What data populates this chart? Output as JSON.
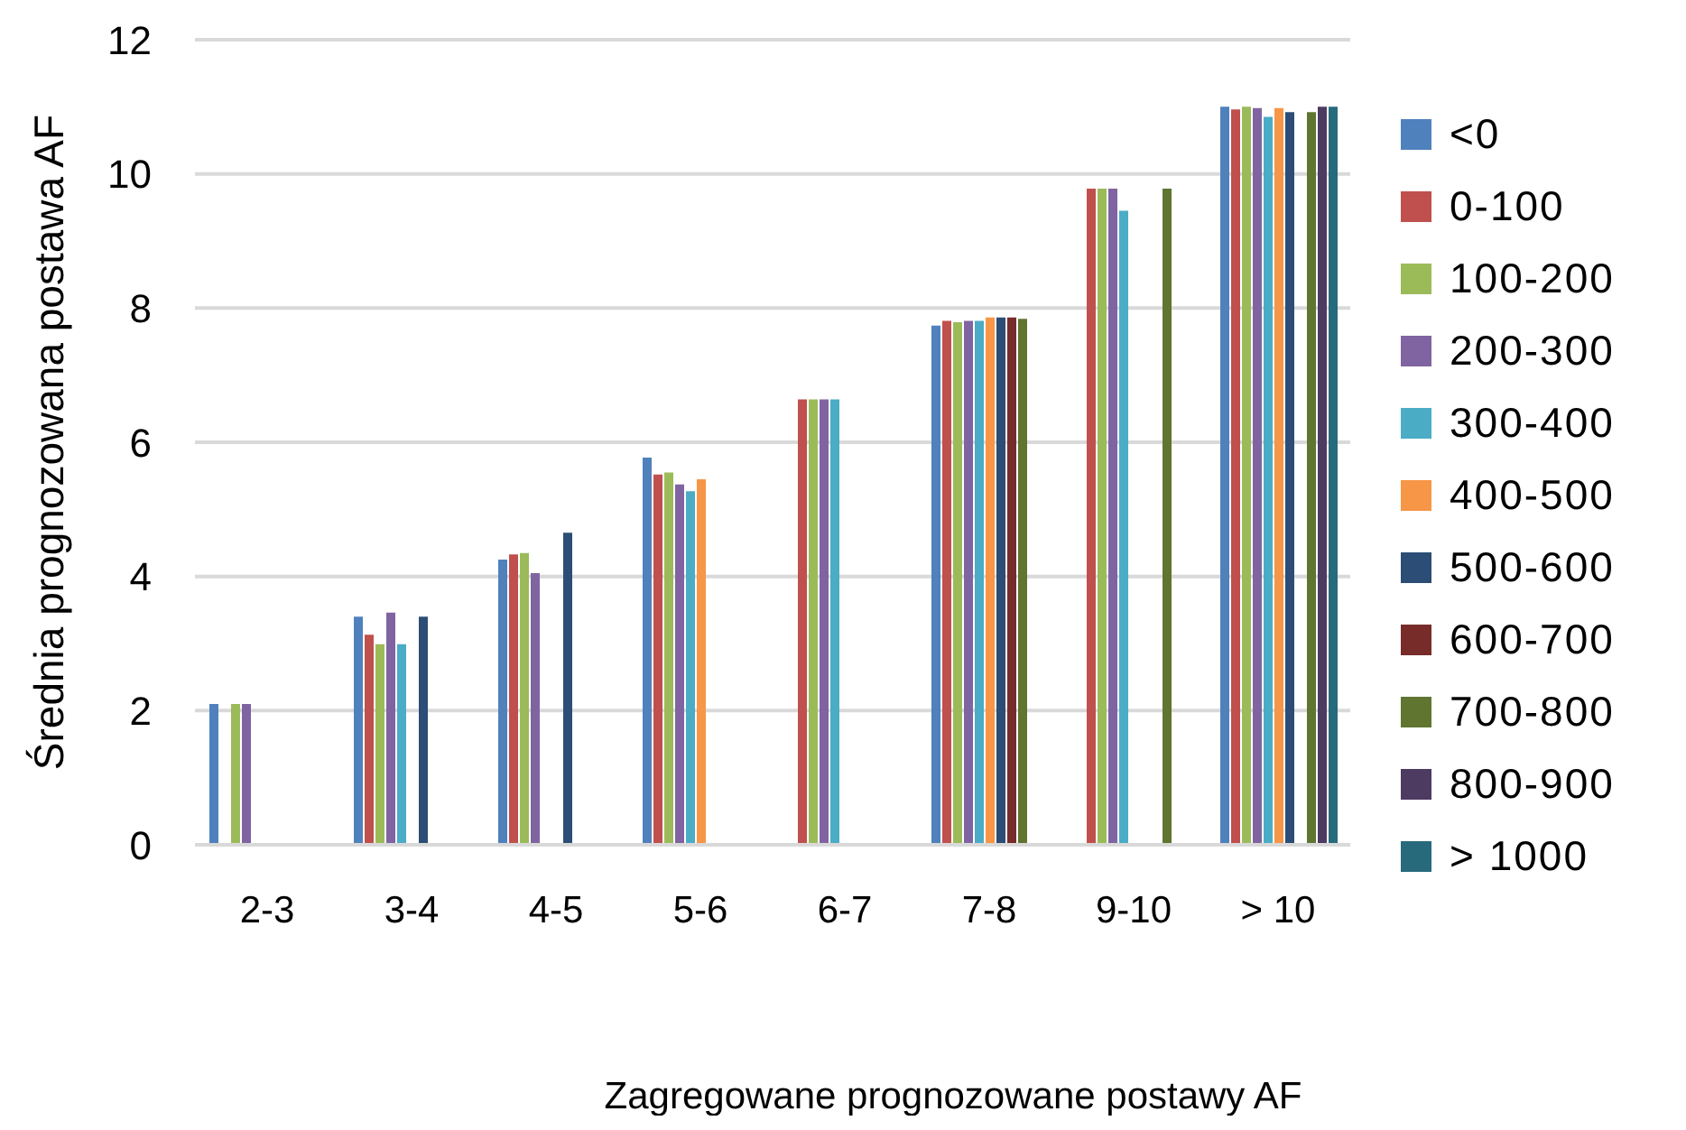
{
  "chart_data": {
    "type": "bar",
    "xlabel": "Zagregowane prognozowane postawy AF",
    "ylabel": "Średnia prognozowana postawa AF",
    "categories": [
      "2-3",
      "3-4",
      "4-5",
      "5-6",
      "6-7",
      "7-8",
      "9-10",
      "> 10"
    ],
    "series": [
      {
        "name": "<0",
        "color": "#4f81bd",
        "values": [
          2.1,
          3.4,
          4.25,
          5.77,
          null,
          7.74,
          null,
          11.0
        ]
      },
      {
        "name": "0-100",
        "color": "#c0504d",
        "values": [
          null,
          3.13,
          4.33,
          5.52,
          6.64,
          7.81,
          9.78,
          10.96
        ]
      },
      {
        "name": "100-200",
        "color": "#9bbb59",
        "values": [
          2.1,
          2.99,
          4.35,
          5.55,
          6.64,
          7.79,
          9.78,
          11.0
        ]
      },
      {
        "name": "200-300",
        "color": "#8064a2",
        "values": [
          2.1,
          3.46,
          4.05,
          5.37,
          6.64,
          7.81,
          9.78,
          10.98
        ]
      },
      {
        "name": "300-400",
        "color": "#4bacc6",
        "values": [
          null,
          2.99,
          null,
          5.27,
          6.64,
          7.81,
          9.45,
          10.85
        ]
      },
      {
        "name": "400-500",
        "color": "#f79646",
        "values": [
          null,
          null,
          null,
          5.45,
          null,
          7.86,
          null,
          10.98
        ]
      },
      {
        "name": "500-600",
        "color": "#2c4d75",
        "values": [
          null,
          3.4,
          4.65,
          null,
          null,
          7.86,
          null,
          10.92
        ]
      },
      {
        "name": "600-700",
        "color": "#772c2a",
        "values": [
          null,
          null,
          null,
          null,
          null,
          7.86,
          null,
          null
        ]
      },
      {
        "name": "700-800",
        "color": "#5f7530",
        "values": [
          null,
          null,
          null,
          null,
          null,
          7.84,
          9.78,
          10.92
        ]
      },
      {
        "name": "800-900",
        "color": "#4d3b62",
        "values": [
          null,
          null,
          null,
          null,
          null,
          null,
          null,
          11.0
        ]
      },
      {
        "name": "> 1000",
        "color": "#276a7c",
        "values": [
          null,
          null,
          null,
          null,
          null,
          null,
          null,
          11.0
        ]
      }
    ],
    "ylim": [
      0,
      12
    ],
    "yticks": [
      0,
      2,
      4,
      6,
      8,
      10,
      12
    ],
    "grid": "y",
    "legend": "right"
  }
}
